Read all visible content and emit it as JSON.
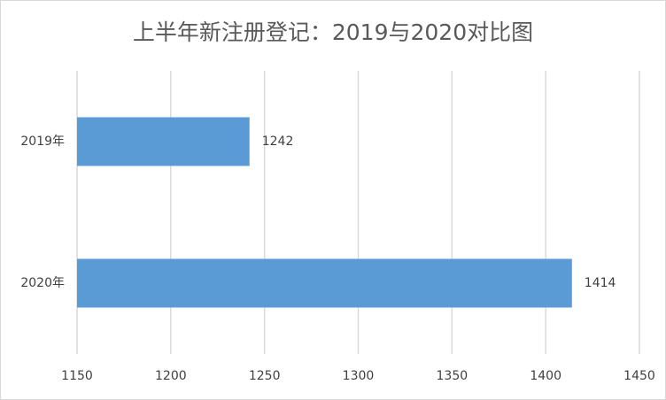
{
  "chart_data": {
    "type": "barh",
    "title": "上半年新注册登记：2019与2020对比图",
    "categories": [
      "2019年",
      "2020年"
    ],
    "values": [
      1242,
      1414
    ],
    "color": "#5b9bd5",
    "xlim": [
      1150,
      1450
    ],
    "xticks": [
      1150,
      1200,
      1250,
      1300,
      1350,
      1400,
      1450
    ],
    "grid": true
  }
}
